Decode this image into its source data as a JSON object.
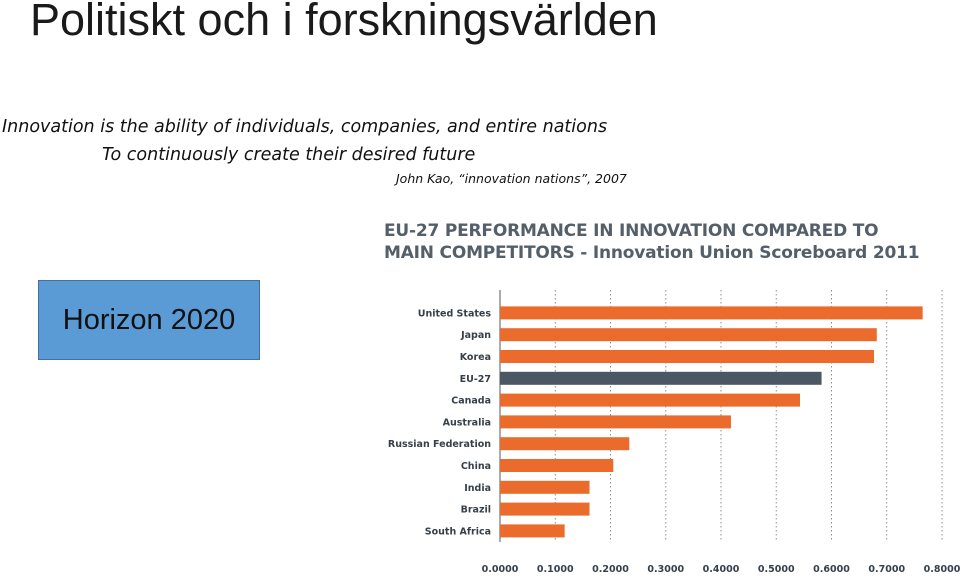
{
  "slide": {
    "title": "Politiskt och i forskningsvärlden",
    "quote_line1": "Innovation is the ability of individuals, companies, and entire nations",
    "quote_line2": "To continuously create their desired future",
    "attribution": "John Kao, “innovation nations”, 2007",
    "horizon_label": "Horizon 2020"
  },
  "colors": {
    "bar": "#ea6b2c",
    "highlight_bar": "#4b5763",
    "horizon_box": "#5b9bd5"
  },
  "chart_data": {
    "type": "bar",
    "orientation": "horizontal",
    "title_line1": "EU-27 PERFORMANCE IN INNOVATION COMPARED TO",
    "title_line2": "MAIN COMPETITORS - Innovation Union Scoreboard 2011",
    "categories": [
      "United States",
      "Japan",
      "Korea",
      "EU-27",
      "Canada",
      "Australia",
      "Russian Federation",
      "China",
      "India",
      "Brazil",
      "South Africa"
    ],
    "values": [
      0.765,
      0.682,
      0.677,
      0.582,
      0.543,
      0.418,
      0.234,
      0.205,
      0.162,
      0.162,
      0.117
    ],
    "highlight": "EU-27",
    "xlim": [
      0,
      0.8
    ],
    "xticks": [
      "0.0000",
      "0.1000",
      "0.2000",
      "0.3000",
      "0.4000",
      "0.5000",
      "0.6000",
      "0.7000",
      "0.8000"
    ],
    "grid": "dotted vertical"
  }
}
